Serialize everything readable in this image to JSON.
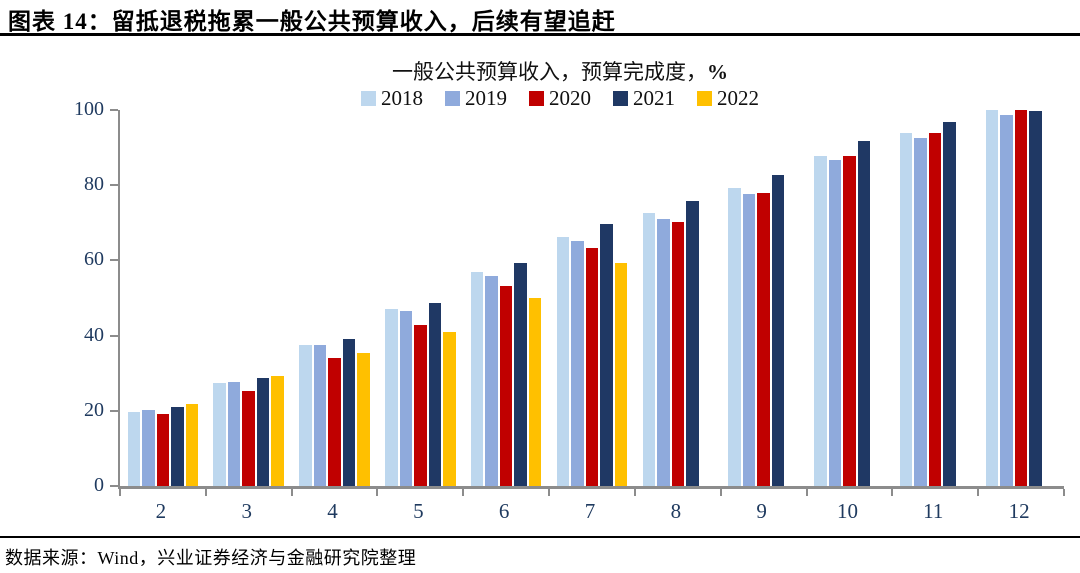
{
  "page": {
    "title": "图表 14：留抵退税拖累一般公共预算收入，后续有望追赶",
    "source": "数据来源：Wind，兴业证券经济与金融研究院整理"
  },
  "chart_data": {
    "type": "bar",
    "title_main": "一般公共预算收入，预算完成度，",
    "title_percent": "%",
    "xlabel": "",
    "ylabel": "",
    "categories": [
      "2",
      "3",
      "4",
      "5",
      "6",
      "7",
      "8",
      "9",
      "10",
      "11",
      "12"
    ],
    "series": [
      {
        "name": "2018",
        "color": "#BDD7EE",
        "values": [
          19.8,
          27.4,
          37.4,
          47.1,
          56.8,
          66.2,
          72.5,
          79.4,
          87.9,
          93.9,
          100.0
        ]
      },
      {
        "name": "2019",
        "color": "#8FAADC",
        "values": [
          20.3,
          27.8,
          37.6,
          46.5,
          55.9,
          65.1,
          71.0,
          77.8,
          86.8,
          92.6,
          98.6
        ]
      },
      {
        "name": "2020",
        "color": "#C00000",
        "values": [
          19.2,
          25.3,
          34.1,
          42.8,
          53.2,
          63.4,
          70.1,
          77.9,
          87.7,
          93.9,
          99.9
        ]
      },
      {
        "name": "2021",
        "color": "#1F3864",
        "values": [
          21.0,
          28.7,
          39.2,
          48.6,
          59.2,
          69.6,
          75.7,
          82.8,
          91.7,
          96.7,
          99.8
        ]
      },
      {
        "name": "2022",
        "color": "#FFC000",
        "values": [
          21.9,
          29.4,
          35.3,
          41.0,
          49.9,
          59.4,
          null,
          null,
          null,
          null,
          null
        ]
      }
    ],
    "ylim": [
      0,
      100
    ],
    "yticks": [
      0,
      20,
      40,
      60,
      80,
      100
    ],
    "legend_position": "top",
    "grid": false
  },
  "colors": {
    "axis": "#8c8c8c",
    "axis_label": "#1f3a5f",
    "rule": "#000000",
    "background": "#ffffff"
  }
}
